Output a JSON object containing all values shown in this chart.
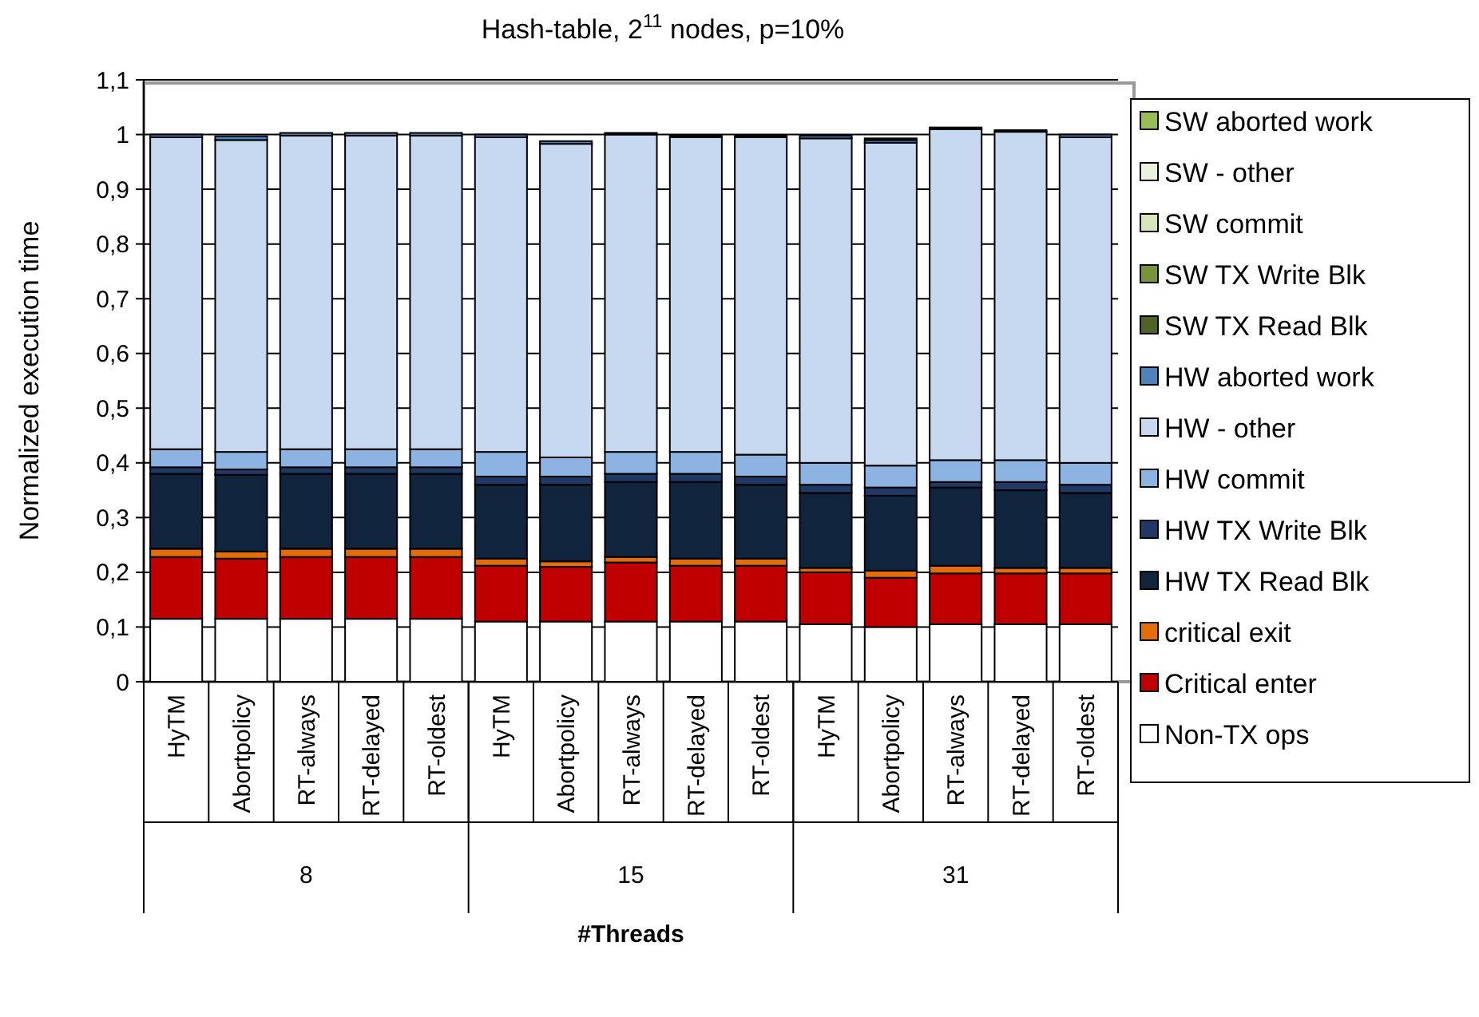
{
  "chart_data": {
    "type": "bar",
    "stacked": true,
    "title": "Hash-table, 2$^{11}$ nodes, p=10%",
    "xlabel": "#Threads",
    "ylabel": "Normalized execution time",
    "categories": [
      "HyTM",
      "Abortpolicy",
      "RT-always",
      "RT-delayed",
      "RT-oldest",
      "HyTM",
      "Abortpolicy",
      "RT-always",
      "RT-delayed",
      "RT-oldest",
      "HyTM",
      "Abortpolicy",
      "RT-always",
      "RT-delayed",
      "RT-oldest"
    ],
    "annotations": [
      "8",
      "15",
      "31"
    ],
    "ylim": [
      0,
      1.1
    ],
    "yticks": [
      0,
      {
        "value": 0.1,
        "label": "0,1"
      },
      {
        "value": 0.2,
        "label": "0,2"
      },
      {
        "value": 0.3,
        "label": "0,3"
      },
      {
        "value": 0.4,
        "label": "0,4"
      },
      {
        "value": 0.5,
        "label": "0,5"
      },
      {
        "value": 0.6,
        "label": "0,6"
      },
      {
        "value": 0.7,
        "label": "0,7"
      },
      {
        "value": 0.8,
        "label": "0,8"
      },
      {
        "value": 0.9,
        "label": "0,9"
      },
      1,
      {
        "value": 1.1,
        "label": "1,1"
      }
    ],
    "grid": "y",
    "legend": "right",
    "series": [
      {
        "name": "Non-TX ops",
        "color": "#ffffff",
        "values": [
          0.115,
          0.115,
          0.115,
          0.115,
          0.115,
          0.11,
          0.11,
          0.11,
          0.11,
          0.11,
          0.105,
          0.1,
          0.105,
          0.105,
          0.105
        ]
      },
      {
        "name": "Critical enter",
        "color": "#c00000",
        "values": [
          0.113,
          0.11,
          0.113,
          0.113,
          0.113,
          0.102,
          0.1,
          0.108,
          0.102,
          0.102,
          0.095,
          0.09,
          0.093,
          0.093,
          0.093
        ]
      },
      {
        "name": "critical exit",
        "color": "#e46c0a",
        "values": [
          0.015,
          0.013,
          0.015,
          0.015,
          0.015,
          0.013,
          0.01,
          0.01,
          0.013,
          0.013,
          0.008,
          0.013,
          0.014,
          0.01,
          0.01
        ]
      },
      {
        "name": "HW TX Read Blk",
        "color": "#10243e",
        "values": [
          0.137,
          0.14,
          0.137,
          0.137,
          0.137,
          0.135,
          0.14,
          0.137,
          0.14,
          0.135,
          0.137,
          0.137,
          0.143,
          0.142,
          0.137
        ]
      },
      {
        "name": "HW TX Write Blk",
        "color": "#1f3864",
        "values": [
          0.012,
          0.01,
          0.012,
          0.012,
          0.012,
          0.015,
          0.015,
          0.015,
          0.015,
          0.015,
          0.015,
          0.015,
          0.01,
          0.015,
          0.015
        ]
      },
      {
        "name": "HW commit",
        "color": "#8db3e2",
        "values": [
          0.033,
          0.032,
          0.033,
          0.033,
          0.033,
          0.045,
          0.035,
          0.04,
          0.04,
          0.04,
          0.04,
          0.04,
          0.04,
          0.04,
          0.04
        ]
      },
      {
        "name": "HW - other",
        "color": "#c6d9f1",
        "values": [
          0.57,
          0.57,
          0.573,
          0.573,
          0.573,
          0.575,
          0.573,
          0.58,
          0.575,
          0.58,
          0.593,
          0.59,
          0.605,
          0.6,
          0.595
        ]
      },
      {
        "name": "HW aborted work",
        "color": "#4f81bd",
        "values": [
          0.005,
          0.007,
          0.005,
          0.005,
          0.005,
          0.005,
          0.005,
          0.003,
          0.003,
          0.003,
          0.005,
          0.005,
          0.003,
          0.003,
          0.005
        ]
      },
      {
        "name": "SW TX Read Blk",
        "color": "#4f6228",
        "values": [
          0,
          0,
          0,
          0,
          0,
          0,
          0,
          0,
          0,
          0,
          0,
          0,
          0,
          0,
          0
        ]
      },
      {
        "name": "SW TX Write Blk",
        "color": "#77933c",
        "values": [
          0,
          0,
          0,
          0,
          0,
          0,
          0,
          0,
          0,
          0,
          0,
          0,
          0,
          0,
          0
        ]
      },
      {
        "name": "SW commit",
        "color": "#d7e4bd",
        "values": [
          0,
          0,
          0,
          0,
          0,
          0,
          0,
          0,
          0,
          0,
          0,
          0,
          0,
          0,
          0
        ]
      },
      {
        "name": "SW - other",
        "color": "#ebf1de",
        "values": [
          0,
          0,
          0,
          0,
          0,
          0,
          0,
          0,
          0,
          0,
          0,
          0.003,
          0,
          0,
          0
        ]
      },
      {
        "name": "SW aborted work",
        "color": "#9bbb59",
        "values": [
          0,
          0,
          0,
          0,
          0,
          0,
          0,
          0,
          0,
          0,
          0,
          0,
          0,
          0,
          0
        ]
      }
    ]
  }
}
